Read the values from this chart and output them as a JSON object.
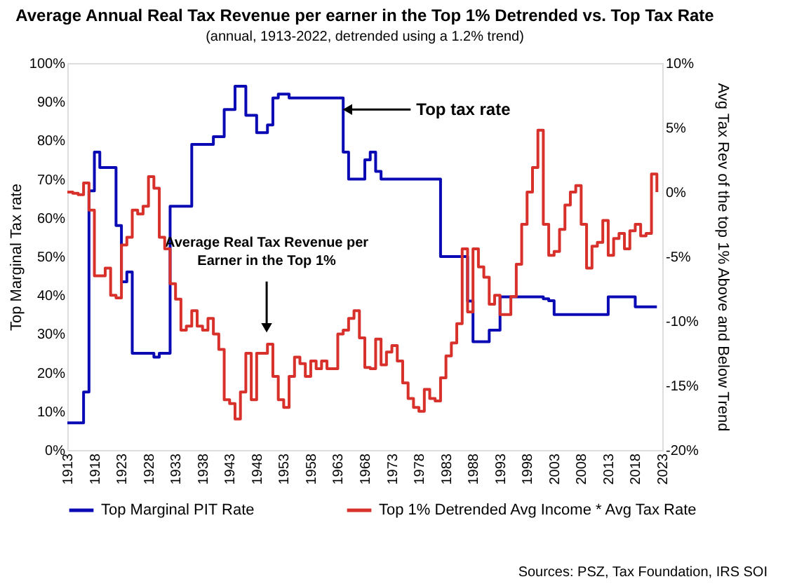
{
  "chart_data": {
    "type": "step",
    "title": "Average Annual Real Tax Revenue per earner in the Top 1% Detrended vs. Top Tax Rate",
    "subtitle": "(annual, 1913-2022, detrended using a 1.2% trend)",
    "ylabel": "Top Marginal Tax rate",
    "y2label": "Avg Tax Rev of the top 1% Above and Below Trend",
    "x": [
      1913,
      1914,
      1915,
      1916,
      1917,
      1918,
      1919,
      1920,
      1921,
      1922,
      1923,
      1924,
      1925,
      1926,
      1927,
      1928,
      1929,
      1930,
      1931,
      1932,
      1933,
      1934,
      1935,
      1936,
      1937,
      1938,
      1939,
      1940,
      1941,
      1942,
      1943,
      1944,
      1945,
      1946,
      1947,
      1948,
      1949,
      1950,
      1951,
      1952,
      1953,
      1954,
      1955,
      1956,
      1957,
      1958,
      1959,
      1960,
      1961,
      1962,
      1963,
      1964,
      1965,
      1966,
      1967,
      1968,
      1969,
      1970,
      1971,
      1972,
      1973,
      1974,
      1975,
      1976,
      1977,
      1978,
      1979,
      1980,
      1981,
      1982,
      1983,
      1984,
      1985,
      1986,
      1987,
      1988,
      1989,
      1990,
      1991,
      1992,
      1993,
      1994,
      1995,
      1996,
      1997,
      1998,
      1999,
      2000,
      2001,
      2002,
      2003,
      2004,
      2005,
      2006,
      2007,
      2008,
      2009,
      2010,
      2011,
      2012,
      2013,
      2014,
      2015,
      2016,
      2017,
      2018,
      2019,
      2020,
      2021,
      2022
    ],
    "series": [
      {
        "name": "Top Marginal PIT Rate",
        "color": "#0a0ab4",
        "values": [
          7,
          7,
          7,
          15,
          67,
          77,
          73,
          73,
          73,
          58,
          43.5,
          46,
          25,
          25,
          25,
          25,
          24,
          25,
          25,
          63,
          63,
          63,
          63,
          79,
          79,
          79,
          79,
          81,
          81,
          88,
          88,
          94,
          94,
          86.5,
          86.5,
          82,
          82,
          84,
          91,
          92,
          92,
          91,
          91,
          91,
          91,
          91,
          91,
          91,
          91,
          91,
          91,
          77,
          70,
          70,
          70,
          75,
          77,
          72,
          70,
          70,
          70,
          70,
          70,
          70,
          70,
          70,
          70,
          70,
          70,
          50,
          50,
          50,
          50,
          50,
          38.5,
          28,
          28,
          28,
          31,
          31,
          39.6,
          39.6,
          39.6,
          39.6,
          39.6,
          39.6,
          39.6,
          39.6,
          39.1,
          38.6,
          35,
          35,
          35,
          35,
          35,
          35,
          35,
          35,
          35,
          35,
          39.6,
          39.6,
          39.6,
          39.6,
          39.6,
          37,
          37,
          37,
          37,
          37
        ]
      },
      {
        "name": "Top 1% Detrended Avg Income * Avg Tax Rate",
        "color": "#d8302a",
        "axis": "y2",
        "values": [
          0,
          -0.1,
          -0.2,
          0.7,
          -1.4,
          -6.5,
          -6.5,
          -5.9,
          -8,
          -8.2,
          -4.1,
          -3.5,
          -1.4,
          -1.7,
          -1.1,
          1.2,
          0.3,
          -3.5,
          -4.4,
          -7.1,
          -8.3,
          -10.7,
          -10.4,
          -9.2,
          -10.4,
          -10.7,
          -9.8,
          -11,
          -12.2,
          -16.1,
          -16.4,
          -17.6,
          -15.5,
          -12.5,
          -16.1,
          -12.5,
          -12.5,
          -11.8,
          -14.3,
          -16.1,
          -16.7,
          -14.3,
          -12.8,
          -13.3,
          -14.3,
          -13.1,
          -13.7,
          -13.1,
          -13.7,
          -13.7,
          -11,
          -10.7,
          -9.8,
          -9.2,
          -11.3,
          -13.6,
          -13.7,
          -11.4,
          -13.4,
          -12.4,
          -11.9,
          -13.1,
          -14.8,
          -16,
          -16.7,
          -17,
          -15.3,
          -16,
          -16.2,
          -14.4,
          -12.7,
          -11.7,
          -10.2,
          -4.4,
          -9.3,
          -4.4,
          -5.8,
          -6.6,
          -8.7,
          -8,
          -9.5,
          -9.5,
          -8.1,
          -5.6,
          -2.5,
          0,
          1.9,
          4.8,
          -2.5,
          -4.9,
          -4.6,
          -2.9,
          -1,
          0,
          0.5,
          -2.5,
          -5.9,
          -4.2,
          -3.9,
          -2.2,
          -4.9,
          -3.6,
          -3.2,
          -4.4,
          -3,
          -2.5,
          -3.4,
          -3.2,
          1.4,
          0
        ]
      }
    ],
    "xlim": [
      1913,
      2023
    ],
    "xticks": [
      1913,
      1918,
      1923,
      1928,
      1933,
      1938,
      1943,
      1948,
      1953,
      1958,
      1963,
      1968,
      1973,
      1978,
      1983,
      1988,
      1993,
      1998,
      2003,
      2008,
      2013,
      2018,
      2023
    ],
    "ylim": [
      0,
      100
    ],
    "yticks": [
      {
        "value": 0,
        "label": "0%"
      },
      {
        "value": 10,
        "label": "10%"
      },
      {
        "value": 20,
        "label": "20%"
      },
      {
        "value": 30,
        "label": "30%"
      },
      {
        "value": 40,
        "label": "40%"
      },
      {
        "value": 50,
        "label": "50%"
      },
      {
        "value": 60,
        "label": "60%"
      },
      {
        "value": 70,
        "label": "70%"
      },
      {
        "value": 80,
        "label": "80%"
      },
      {
        "value": 90,
        "label": "90%"
      },
      {
        "value": 100,
        "label": "100%"
      }
    ],
    "y2lim": [
      -20,
      10
    ],
    "y2ticks": [
      {
        "value": -20,
        "label": "-20%"
      },
      {
        "value": -15,
        "label": "-15%"
      },
      {
        "value": -10,
        "label": "-10%"
      },
      {
        "value": -5,
        "label": "-5%"
      },
      {
        "value": 0,
        "label": "0%"
      },
      {
        "value": 5,
        "label": "5%"
      },
      {
        "value": 10,
        "label": "10%"
      }
    ],
    "annotations": [
      {
        "text": "Top tax rate",
        "x": 1963.5,
        "y": 88
      },
      "Average Real Tax Revenue per Earner in the Top 1%",
      "Sources: PSZ, Tax Foundation, IRS SOI"
    ],
    "grid": false,
    "legend": "bottom",
    "line_style": "solid",
    "marker": "none"
  }
}
